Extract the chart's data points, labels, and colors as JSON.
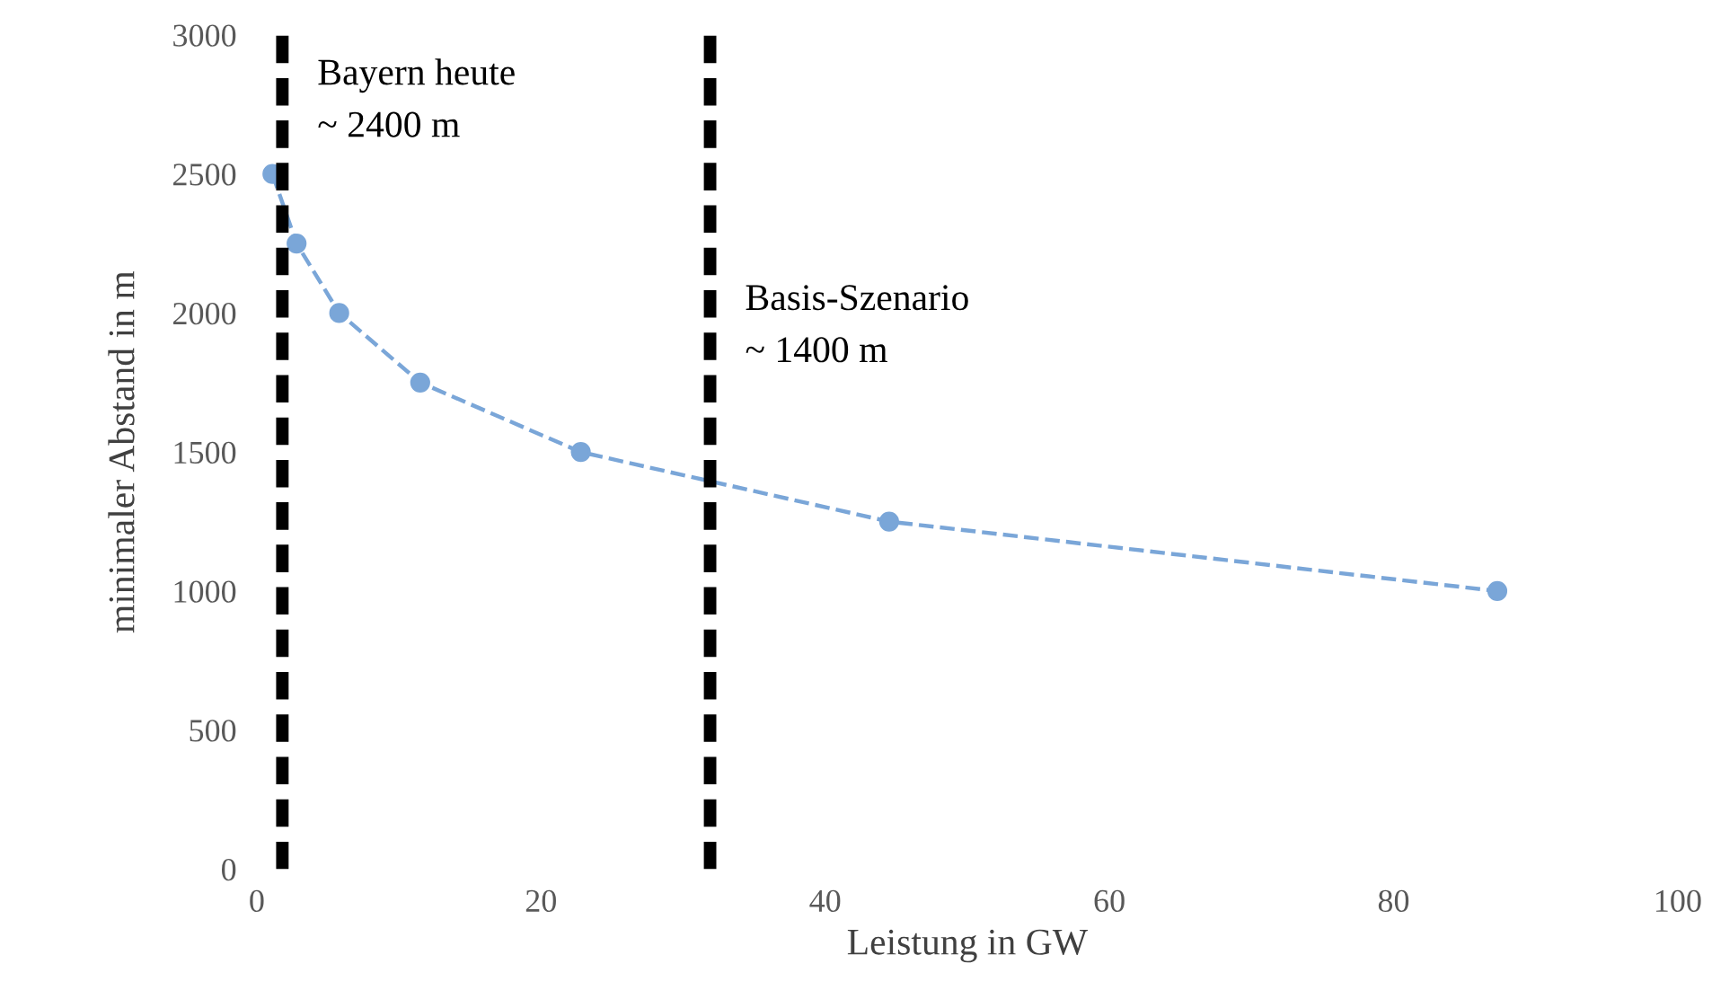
{
  "chart_data": {
    "type": "line",
    "xlabel": "Leistung in GW",
    "ylabel": "minimaler Abstand in m",
    "x": [
      1.1,
      2.8,
      5.8,
      11.5,
      22.8,
      44.5,
      87.3
    ],
    "series": [
      {
        "color": "#7aa6d8",
        "values": [
          2500,
          2250,
          2000,
          1750,
          1500,
          1250,
          1000
        ]
      }
    ],
    "marker": "circle",
    "line_style": "dashed",
    "grid": false,
    "legend": false,
    "xlim": [
      0,
      100
    ],
    "xticks": [
      0,
      20,
      40,
      60,
      80,
      100
    ],
    "ylim": [
      0,
      3000
    ],
    "yticks": [
      0,
      500,
      1000,
      1500,
      2000,
      2500,
      3000
    ],
    "ref_lines": [
      {
        "axis": "x",
        "value": 1.8,
        "color": "#000000",
        "line_style": "dashed",
        "label": "Bayern heute\n~ 2400 m"
      },
      {
        "axis": "x",
        "value": 31.9,
        "color": "#000000",
        "line_style": "dashed",
        "label": "Basis-Szenario\n~ 1400 m"
      }
    ]
  }
}
